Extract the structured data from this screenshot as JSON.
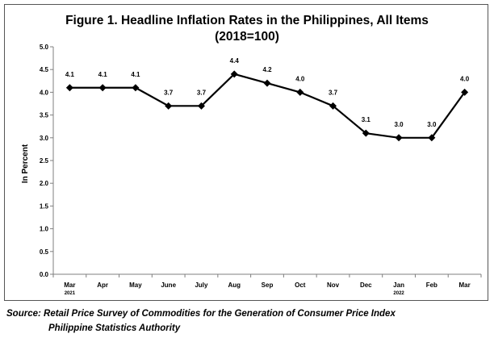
{
  "chart_data": {
    "type": "line",
    "title": "Figure 1. Headline Inflation Rates in the Philippines, All Items",
    "subtitle": "(2018=100)",
    "ylabel": "In Percent",
    "xlabel": "",
    "ylim": [
      0,
      5
    ],
    "yticks": [
      "0.0",
      "0.5",
      "1.0",
      "1.5",
      "2.0",
      "2.5",
      "3.0",
      "3.5",
      "4.0",
      "4.5",
      "5.0"
    ],
    "categories": [
      "Mar",
      "Apr",
      "May",
      "June",
      "July",
      "Aug",
      "Sep",
      "Oct",
      "Nov",
      "Dec",
      "Jan",
      "Feb",
      "Mar"
    ],
    "year_labels": [
      {
        "index": 0,
        "label": "2021"
      },
      {
        "index": 10,
        "label": "2022"
      }
    ],
    "series": [
      {
        "values": [
          4.1,
          4.1,
          4.1,
          3.7,
          3.7,
          4.4,
          4.2,
          4.0,
          3.7,
          3.1,
          3.0,
          3.0,
          4.0
        ],
        "data_labels": [
          "4.1",
          "4.1",
          "4.1",
          "3.7",
          "3.7",
          "4.4",
          "4.2",
          "4.0",
          "3.7",
          "3.1",
          "3.0",
          "3.0",
          "4.0"
        ],
        "color": "#000000",
        "marker": "diamond"
      }
    ],
    "grid": false,
    "legend": "none"
  },
  "source": {
    "line1": "Source: Retail Price Survey of Commodities for the Generation of Consumer Price Index",
    "line2": "Philippine Statistics Authority"
  }
}
